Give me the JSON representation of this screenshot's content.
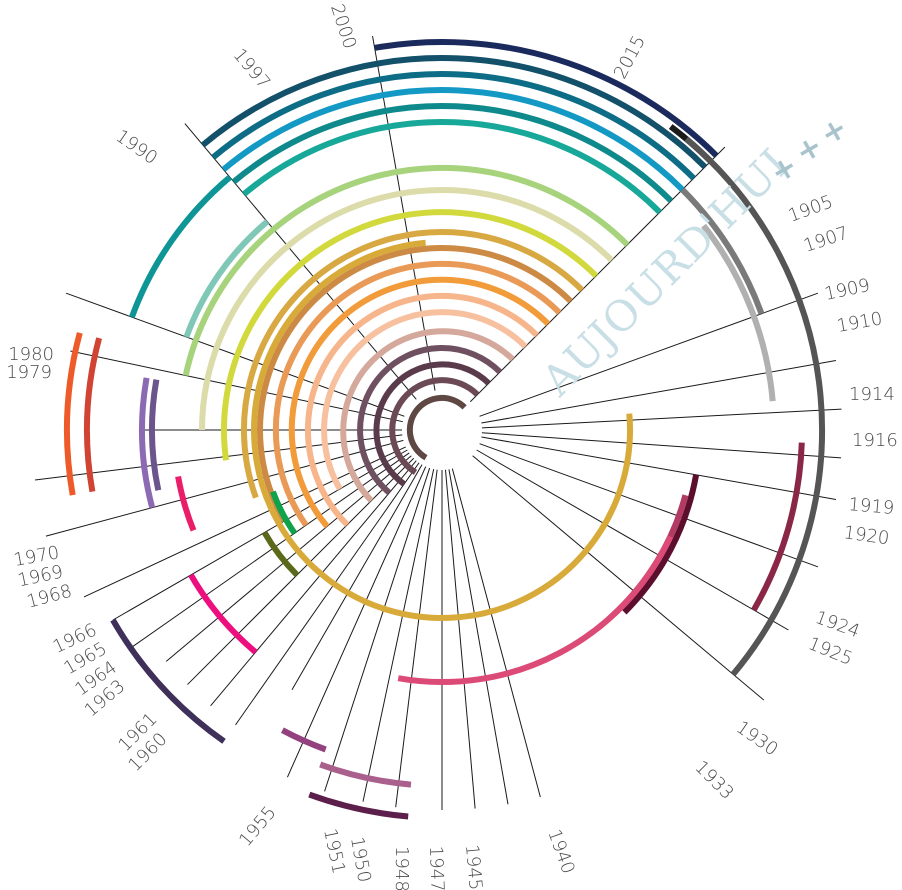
{
  "title_text": "AUJOURD'HUI",
  "plus_marks": [
    "+",
    "+",
    "+"
  ],
  "year_labels": [
    "1905",
    "1907",
    "1909",
    "1910",
    "1914",
    "1916",
    "1919",
    "1920",
    "1924",
    "1925",
    "1930",
    "1933",
    "1940",
    "1945",
    "1947",
    "1948",
    "1950",
    "1951",
    "1955",
    "1960",
    "1961",
    "1963",
    "1964",
    "1965",
    "1966",
    "1968",
    "1969",
    "1970",
    "1979",
    "1980",
    "1990",
    "1997",
    "2000",
    "2015"
  ],
  "colors": {
    "axis": "#1a1a1a",
    "today": "#c9dfe6",
    "plus": "#a9c3cc"
  },
  "arcs": [
    {
      "color": "#1b2a5c"
    },
    {
      "color": "#13506a"
    },
    {
      "color": "#0d6d86"
    },
    {
      "color": "#1499c4"
    },
    {
      "color": "#0f8a8c"
    },
    {
      "color": "#17a89a"
    },
    {
      "color": "#0f9595"
    },
    {
      "color": "#7fc7b6"
    },
    {
      "color": "#a7d37c"
    },
    {
      "color": "#dcdcaa"
    },
    {
      "color": "#d2d93c"
    },
    {
      "color": "#d8a842"
    },
    {
      "color": "#cc8a44"
    },
    {
      "color": "#e99a56"
    },
    {
      "color": "#f29b3b"
    },
    {
      "color": "#f7b58c"
    },
    {
      "color": "#f7c1a0"
    },
    {
      "color": "#d4a89a"
    },
    {
      "color": "#6e5060"
    },
    {
      "color": "#5a3b4c"
    },
    {
      "color": "#6b4a55"
    },
    {
      "color": "#5f4744"
    },
    {
      "color": "#d8aa3a"
    },
    {
      "color": "#1a1a1a"
    },
    {
      "color": "#555555"
    },
    {
      "color": "#7a7a7a"
    },
    {
      "color": "#b0b0b0"
    },
    {
      "color": "#8b2746"
    },
    {
      "color": "#5c0f2c"
    },
    {
      "color": "#b23a63"
    },
    {
      "color": "#dc4b77"
    },
    {
      "color": "#5c1e4a"
    },
    {
      "color": "#a9608c"
    },
    {
      "color": "#94427f"
    },
    {
      "color": "#3f305a"
    },
    {
      "color": "#ee0f7f"
    },
    {
      "color": "#5b6a1a"
    },
    {
      "color": "#0ea34a"
    },
    {
      "color": "#ea1e68"
    },
    {
      "color": "#8b6ab3"
    },
    {
      "color": "#6c548c"
    },
    {
      "color": "#d14433"
    },
    {
      "color": "#ee5a2a"
    }
  ]
}
